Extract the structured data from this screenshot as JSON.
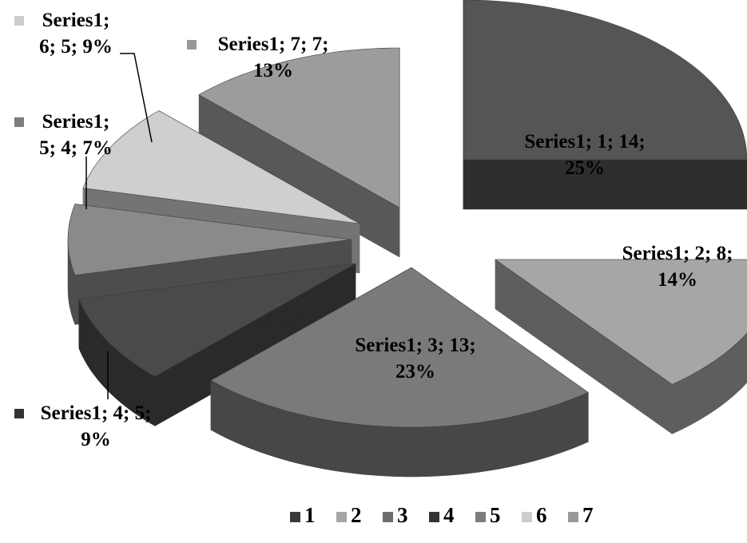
{
  "chart_data": {
    "type": "pie",
    "style": "3d-exploded",
    "categories": [
      "1",
      "2",
      "3",
      "4",
      "5",
      "6",
      "7"
    ],
    "series": [
      {
        "name": "Series1",
        "values": [
          14,
          8,
          13,
          5,
          4,
          5,
          7
        ]
      }
    ],
    "data_labels": [
      {
        "lines": [
          "Series1; 1; 14;",
          "25%"
        ]
      },
      {
        "lines": [
          "Series1; 2; 8;",
          "14%"
        ]
      },
      {
        "lines": [
          "Series1; 3; 13;",
          "23%"
        ]
      },
      {
        "lines": [
          "Series1; 4; 5;",
          "9%"
        ]
      },
      {
        "lines": [
          "Series1;",
          "5; 4; 7%"
        ]
      },
      {
        "lines": [
          "Series1;",
          "6; 5; 9%"
        ]
      },
      {
        "lines": [
          "Series1; 7; 7;",
          "13%"
        ]
      }
    ],
    "colors": {
      "top": [
        "#555555",
        "#a6a6a6",
        "#7a7a7a",
        "#4a4a4a",
        "#8a8a8a",
        "#cfcfcf",
        "#9c9c9c"
      ],
      "side": [
        "#2e2e2e",
        "#5e5e5e",
        "#474747",
        "#2a2a2a",
        "#4d4d4d",
        "#747474",
        "#585858"
      ],
      "label_key": [
        "#3a3a3a",
        "#a6a6a6",
        "#6e6e6e",
        "#333333",
        "#7d7d7d",
        "#cccccc",
        "#999999"
      ]
    },
    "legend": {
      "position": "bottom",
      "entries": [
        "1",
        "2",
        "3",
        "4",
        "5",
        "6",
        "7"
      ]
    }
  }
}
